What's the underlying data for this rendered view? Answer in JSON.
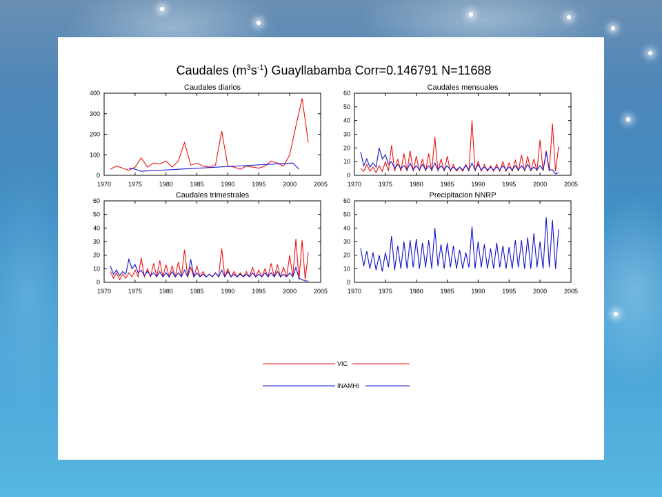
{
  "title_prefix": "Caudales (m",
  "title_sup1": "3",
  "title_mid": "s",
  "title_sup2": "-1",
  "title_suffix": ") Guayllabamba Corr=0.146791 N=11688",
  "legend": [
    {
      "label": "VIC",
      "color": "#ee1111"
    },
    {
      "label": "INAMHI",
      "color": "#1111cc"
    }
  ],
  "chart_data": [
    {
      "type": "line",
      "title": "Caudales diarios",
      "xlim": [
        1970,
        2005
      ],
      "xticks": [
        1970,
        1975,
        1980,
        1985,
        1990,
        1995,
        2000,
        2005
      ],
      "ylim": [
        0,
        400
      ],
      "yticks": [
        0,
        100,
        200,
        300,
        400
      ],
      "series": [
        {
          "name": "VIC",
          "color": "#ee1111",
          "x": [
            1971.0,
            1972.0,
            1973.0,
            1974.0,
            1975.0,
            1976.0,
            1977.0,
            1978.0,
            1979.0,
            1980.0,
            1981.0,
            1982.0,
            1983.0,
            1984.0,
            1985.0,
            1986.0,
            1987.0,
            1988.0,
            1989.0,
            1990.0,
            1991.0,
            1992.0,
            1993.0,
            1994.0,
            1995.0,
            1996.0,
            1997.0,
            1998.0,
            1999.0,
            2000.0,
            2001.0,
            2002.0,
            2003.0
          ],
          "y": [
            30,
            45,
            35,
            25,
            40,
            85,
            40,
            60,
            55,
            70,
            40,
            70,
            160,
            50,
            60,
            45,
            40,
            50,
            215,
            45,
            40,
            30,
            45,
            40,
            35,
            45,
            70,
            60,
            45,
            100,
            240,
            375,
            160
          ]
        },
        {
          "name": "INAMHI",
          "color": "#1111cc",
          "x": [
            1974.0,
            1975.0,
            1976.0,
            2000.5,
            2001.5
          ],
          "y": [
            35,
            30,
            20,
            60,
            30
          ]
        }
      ]
    },
    {
      "type": "line",
      "title": "Caudales mensuales",
      "xlim": [
        1970,
        2005
      ],
      "xticks": [
        1970,
        1975,
        1980,
        1985,
        1990,
        1995,
        2000,
        2005
      ],
      "ylim": [
        0,
        60
      ],
      "yticks": [
        0,
        10,
        20,
        30,
        40,
        50,
        60
      ],
      "series": [
        {
          "name": "VIC",
          "color": "#ee1111",
          "x": [
            1971.0,
            1971.5,
            1972.0,
            1972.5,
            1973.0,
            1973.5,
            1974.0,
            1974.5,
            1975.0,
            1975.5,
            1976.0,
            1976.5,
            1977.0,
            1977.5,
            1978.0,
            1978.5,
            1979.0,
            1979.5,
            1980.0,
            1980.5,
            1981.0,
            1981.5,
            1982.0,
            1982.5,
            1983.0,
            1983.5,
            1984.0,
            1984.5,
            1985.0,
            1985.5,
            1986.0,
            1986.5,
            1987.0,
            1987.5,
            1988.0,
            1988.5,
            1989.0,
            1989.5,
            1990.0,
            1990.5,
            1991.0,
            1991.5,
            1992.0,
            1992.5,
            1993.0,
            1993.5,
            1994.0,
            1994.5,
            1995.0,
            1995.5,
            1996.0,
            1996.5,
            1997.0,
            1997.5,
            1998.0,
            1998.5,
            1999.0,
            1999.5,
            2000.0,
            2000.5,
            2001.0,
            2001.5,
            2002.0,
            2002.5,
            2003.0
          ],
          "y": [
            5,
            3,
            8,
            3,
            6,
            2,
            7,
            3,
            10,
            3,
            22,
            3,
            12,
            3,
            16,
            3,
            18,
            3,
            14,
            3,
            12,
            3,
            16,
            3,
            28,
            3,
            12,
            3,
            14,
            3,
            8,
            3,
            6,
            3,
            8,
            3,
            40,
            3,
            10,
            3,
            8,
            3,
            7,
            3,
            8,
            3,
            10,
            3,
            9,
            3,
            11,
            3,
            15,
            3,
            14,
            3,
            12,
            3,
            26,
            3,
            18,
            3,
            38,
            3,
            21
          ]
        },
        {
          "name": "INAMHI",
          "color": "#1111cc",
          "x": [
            1971.0,
            1971.5,
            1972.0,
            1972.5,
            1973.0,
            1973.5,
            1974.0,
            1974.5,
            1975.0,
            1975.5,
            1976.0,
            1976.5,
            1977.0,
            1977.5,
            1978.0,
            1978.5,
            1979.0,
            1979.5,
            1980.0,
            1980.5,
            1981.0,
            1981.5,
            1982.0,
            1982.5,
            1983.0,
            1983.5,
            1984.0,
            1984.5,
            1985.0,
            1985.5,
            1986.0,
            1986.5,
            1987.0,
            1987.5,
            1988.0,
            1988.5,
            1989.0,
            1989.5,
            1990.0,
            1990.5,
            1991.0,
            1991.5,
            1992.0,
            1992.5,
            1993.0,
            1993.5,
            1994.0,
            1994.5,
            1995.0,
            1995.5,
            1996.0,
            1996.5,
            1997.0,
            1997.5,
            1998.0,
            1998.5,
            1999.0,
            1999.5,
            2000.0,
            2000.5,
            2001.0,
            2001.5,
            2002.0,
            2002.5,
            2003.0
          ],
          "y": [
            17,
            7,
            12,
            6,
            9,
            6,
            20,
            12,
            15,
            8,
            10,
            5,
            8,
            5,
            7,
            4,
            9,
            4,
            7,
            4,
            8,
            4,
            7,
            4,
            9,
            4,
            7,
            4,
            7,
            4,
            6,
            4,
            6,
            4,
            7,
            4,
            9,
            4,
            8,
            4,
            6,
            4,
            6,
            4,
            6,
            4,
            7,
            4,
            6,
            4,
            7,
            4,
            7,
            4,
            8,
            4,
            6,
            4,
            7,
            4,
            17,
            4,
            4,
            1,
            2
          ]
        }
      ]
    },
    {
      "type": "line",
      "title": "Caudales trimestrales",
      "xlim": [
        1970,
        2005
      ],
      "xticks": [
        1970,
        1975,
        1980,
        1985,
        1990,
        1995,
        2000,
        2005
      ],
      "ylim": [
        0,
        60
      ],
      "yticks": [
        0,
        10,
        20,
        30,
        40,
        50,
        60
      ],
      "series": [
        {
          "name": "VIC",
          "color": "#ee1111",
          "x": [
            1971.0,
            1971.5,
            1972.0,
            1972.5,
            1973.0,
            1973.5,
            1974.0,
            1974.5,
            1975.0,
            1975.5,
            1976.0,
            1976.5,
            1977.0,
            1977.5,
            1978.0,
            1978.5,
            1979.0,
            1979.5,
            1980.0,
            1980.5,
            1981.0,
            1981.5,
            1982.0,
            1982.5,
            1983.0,
            1983.5,
            1984.0,
            1984.5,
            1985.0,
            1985.5,
            1986.0,
            1986.5,
            1987.0,
            1987.5,
            1988.0,
            1988.5,
            1989.0,
            1989.5,
            1990.0,
            1990.5,
            1991.0,
            1991.5,
            1992.0,
            1992.5,
            1993.0,
            1993.5,
            1994.0,
            1994.5,
            1995.0,
            1995.5,
            1996.0,
            1996.5,
            1997.0,
            1997.5,
            1998.0,
            1998.5,
            1999.0,
            1999.5,
            2000.0,
            2000.5,
            2001.0,
            2001.5,
            2002.0,
            2002.5,
            2003.0
          ],
          "y": [
            8,
            3,
            7,
            2,
            6,
            3,
            7,
            4,
            9,
            4,
            18,
            4,
            10,
            4,
            14,
            4,
            16,
            4,
            13,
            4,
            12,
            4,
            15,
            4,
            24,
            4,
            11,
            4,
            12,
            4,
            8,
            4,
            6,
            4,
            7,
            4,
            25,
            4,
            10,
            4,
            8,
            4,
            7,
            4,
            8,
            4,
            11,
            4,
            9,
            4,
            10,
            4,
            14,
            4,
            13,
            4,
            11,
            4,
            20,
            4,
            32,
            2,
            31,
            2,
            22
          ]
        },
        {
          "name": "INAMHI",
          "color": "#1111cc",
          "x": [
            1971.0,
            1971.5,
            1972.0,
            1972.5,
            1973.0,
            1973.5,
            1974.0,
            1974.5,
            1975.0,
            1975.5,
            1976.0,
            1976.5,
            1977.0,
            1977.5,
            1978.0,
            1978.5,
            1979.0,
            1979.5,
            1980.0,
            1980.5,
            1981.0,
            1981.5,
            1982.0,
            1982.5,
            1983.0,
            1983.5,
            1984.0,
            1984.5,
            1985.0,
            1985.5,
            1986.0,
            1986.5,
            1987.0,
            1987.5,
            1988.0,
            1988.5,
            1989.0,
            1989.5,
            1990.0,
            1990.5,
            1991.0,
            1991.5,
            1992.0,
            1992.5,
            1993.0,
            1993.5,
            1994.0,
            1994.5,
            1995.0,
            1995.5,
            1996.0,
            1996.5,
            1997.0,
            1997.5,
            1998.0,
            1998.5,
            1999.0,
            1999.5,
            2000.0,
            2000.5,
            2001.0,
            2001.5,
            2002.0,
            2002.5,
            2003.0
          ],
          "y": [
            12,
            6,
            9,
            5,
            8,
            6,
            17,
            10,
            13,
            7,
            9,
            5,
            8,
            5,
            7,
            4,
            8,
            4,
            7,
            4,
            8,
            4,
            7,
            4,
            9,
            4,
            17,
            4,
            7,
            4,
            6,
            4,
            6,
            4,
            7,
            4,
            9,
            4,
            8,
            4,
            6,
            4,
            6,
            4,
            6,
            4,
            7,
            4,
            6,
            4,
            7,
            4,
            7,
            4,
            8,
            4,
            6,
            4,
            7,
            4,
            11,
            3,
            2,
            1,
            1
          ]
        }
      ]
    },
    {
      "type": "line",
      "title": "Precipitacion NNRP",
      "xlim": [
        1970,
        2005
      ],
      "xticks": [
        1970,
        1975,
        1980,
        1985,
        1990,
        1995,
        2000,
        2005
      ],
      "ylim": [
        0,
        60
      ],
      "yticks": [
        0,
        10,
        20,
        30,
        40,
        50,
        60
      ],
      "series": [
        {
          "name": "NNRP",
          "color": "#1111cc",
          "x": [
            1971.0,
            1971.5,
            1972.0,
            1972.5,
            1973.0,
            1973.5,
            1974.0,
            1974.5,
            1975.0,
            1975.5,
            1976.0,
            1976.5,
            1977.0,
            1977.5,
            1978.0,
            1978.5,
            1979.0,
            1979.5,
            1980.0,
            1980.5,
            1981.0,
            1981.5,
            1982.0,
            1982.5,
            1983.0,
            1983.5,
            1984.0,
            1984.5,
            1985.0,
            1985.5,
            1986.0,
            1986.5,
            1987.0,
            1987.5,
            1988.0,
            1988.5,
            1989.0,
            1989.5,
            1990.0,
            1990.5,
            1991.0,
            1991.5,
            1992.0,
            1992.5,
            1993.0,
            1993.5,
            1994.0,
            1994.5,
            1995.0,
            1995.5,
            1996.0,
            1996.5,
            1997.0,
            1997.5,
            1998.0,
            1998.5,
            1999.0,
            1999.5,
            2000.0,
            2000.5,
            2001.0,
            2001.5,
            2002.0,
            2002.5,
            2003.0
          ],
          "y": [
            25,
            12,
            23,
            10,
            22,
            9,
            20,
            8,
            22,
            11,
            34,
            9,
            27,
            10,
            30,
            10,
            31,
            11,
            32,
            10,
            29,
            11,
            31,
            10,
            40,
            12,
            28,
            10,
            29,
            11,
            27,
            10,
            24,
            10,
            22,
            11,
            41,
            10,
            30,
            11,
            28,
            10,
            25,
            10,
            29,
            11,
            27,
            10,
            26,
            10,
            31,
            11,
            31,
            10,
            33,
            10,
            36,
            11,
            30,
            10,
            48,
            11,
            46,
            10,
            39
          ]
        }
      ]
    }
  ]
}
